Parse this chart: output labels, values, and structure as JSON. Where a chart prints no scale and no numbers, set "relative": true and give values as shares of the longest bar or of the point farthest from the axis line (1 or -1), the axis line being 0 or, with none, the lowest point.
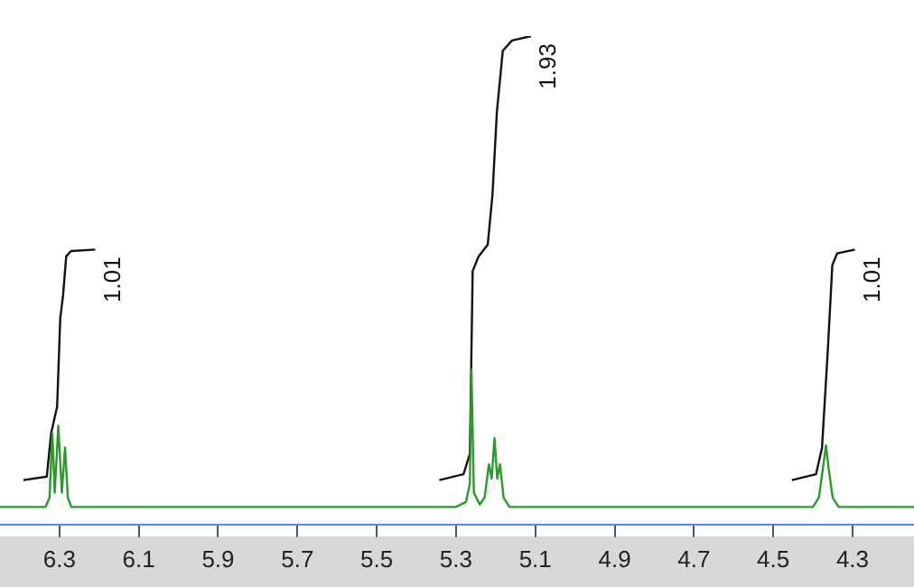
{
  "chart_data": {
    "type": "line",
    "relative": true,
    "grid": false,
    "legend": false,
    "marker": "none",
    "line_style": "solid",
    "xlim": [
      6.45,
      4.145
    ],
    "xticks": [
      6.3,
      6.1,
      5.9,
      5.7,
      5.5,
      5.3,
      5.1,
      4.9,
      4.7,
      4.5,
      4.3
    ],
    "series": [
      {
        "color": "#2a9a2a",
        "x": [
          6.45,
          6.335,
          6.325,
          6.318,
          6.312,
          6.303,
          6.294,
          6.286,
          6.279,
          6.27,
          5.3,
          5.275,
          5.265,
          5.261,
          5.255,
          5.24,
          5.228,
          5.217,
          5.21,
          5.203,
          5.196,
          5.189,
          5.18,
          5.165,
          4.4,
          4.385,
          4.375,
          4.367,
          4.36,
          4.35,
          4.335,
          4.145
        ],
        "values": [
          0.036,
          0.036,
          0.055,
          0.187,
          0.065,
          0.202,
          0.065,
          0.158,
          0.055,
          0.036,
          0.036,
          0.046,
          0.084,
          0.317,
          0.065,
          0.041,
          0.055,
          0.123,
          0.094,
          0.177,
          0.094,
          0.123,
          0.055,
          0.036,
          0.036,
          0.055,
          0.113,
          0.162,
          0.113,
          0.055,
          0.036,
          0.036
        ]
      },
      {
        "color": "#111111",
        "x": [
          6.391,
          6.332,
          6.321,
          6.306,
          6.298,
          6.291,
          6.283,
          6.271,
          6.21
        ],
        "values": [
          0.091,
          0.098,
          0.187,
          0.241,
          0.423,
          0.469,
          0.549,
          0.56,
          0.563
        ]
      },
      {
        "color": "#111111",
        "x": [
          5.342,
          5.281,
          5.265,
          5.258,
          5.243,
          5.22,
          5.208,
          5.197,
          5.182,
          5.159,
          5.111
        ],
        "values": [
          0.091,
          0.103,
          0.145,
          0.519,
          0.549,
          0.573,
          0.675,
          0.844,
          0.97,
          0.991,
          1
        ]
      },
      {
        "color": "#111111",
        "x": [
          4.453,
          4.392,
          4.377,
          4.362,
          4.351,
          4.339,
          4.294
        ],
        "values": [
          0.091,
          0.103,
          0.157,
          0.362,
          0.531,
          0.555,
          0.563
        ]
      }
    ],
    "annotations": [
      {
        "text": "1.01",
        "x": 6.21,
        "y": 0.563
      },
      {
        "text": "1.93",
        "x": 5.111,
        "y": 1
      },
      {
        "text": "1.01",
        "x": 4.294,
        "y": 0.563
      }
    ]
  }
}
